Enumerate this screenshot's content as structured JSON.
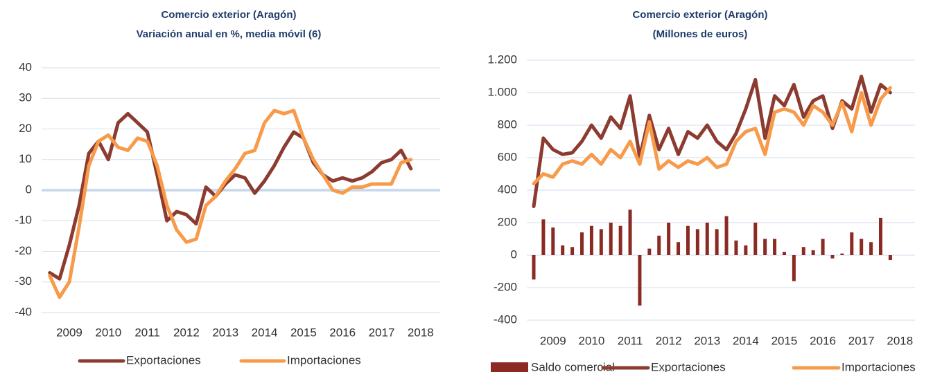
{
  "chart_data": [
    {
      "type": "line",
      "title": [
        "Comercio exterior (Aragón)",
        "Variación anual en %, media móvil (6)"
      ],
      "x": [
        2008.5,
        2008.75,
        2009,
        2009.25,
        2009.5,
        2009.75,
        2010,
        2010.25,
        2010.5,
        2010.75,
        2011,
        2011.25,
        2011.5,
        2011.75,
        2012,
        2012.25,
        2012.5,
        2012.75,
        2013,
        2013.25,
        2013.5,
        2013.75,
        2014,
        2014.25,
        2014.5,
        2014.75,
        2015,
        2015.25,
        2015.5,
        2015.75,
        2016,
        2016.25,
        2016.5,
        2016.75,
        2017,
        2017.25,
        2017.5,
        2017.75
      ],
      "series": [
        {
          "name": "Exportaciones",
          "color": "#8c3b30",
          "values": [
            -27,
            -29,
            -18,
            -5,
            12,
            16,
            10,
            22,
            25,
            22,
            19,
            5,
            -10,
            -7,
            -8,
            -11,
            1,
            -2,
            2,
            5,
            4,
            -1,
            3,
            8,
            14,
            19,
            17,
            9,
            5,
            3,
            4,
            3,
            4,
            6,
            9,
            10,
            13,
            7
          ]
        },
        {
          "name": "Importaciones",
          "color": "#f79a4a",
          "values": [
            -28,
            -35,
            -30,
            -12,
            8,
            16,
            18,
            14,
            13,
            17,
            16,
            8,
            -5,
            -13,
            -17,
            -16,
            -5,
            -2,
            3,
            7,
            12,
            13,
            22,
            26,
            25,
            26,
            17,
            10,
            5,
            0,
            -1,
            1,
            1,
            2,
            2,
            2,
            9,
            10
          ]
        }
      ],
      "xlim": [
        2008.29,
        2018.5
      ],
      "xticks": [
        2009,
        2010,
        2011,
        2012,
        2013,
        2014,
        2015,
        2016,
        2017,
        2018
      ],
      "ylim": [
        -40,
        40
      ],
      "yticks": [
        -40,
        -30,
        -20,
        -10,
        0,
        10,
        20,
        30,
        40
      ],
      "grid": true
    },
    {
      "type": "line",
      "title": [
        "Comercio exterior (Aragón)",
        "(Millones de euros)"
      ],
      "x": [
        2008.5,
        2008.75,
        2009,
        2009.25,
        2009.5,
        2009.75,
        2010,
        2010.25,
        2010.5,
        2010.75,
        2011,
        2011.25,
        2011.5,
        2011.75,
        2012,
        2012.25,
        2012.5,
        2012.75,
        2013,
        2013.25,
        2013.5,
        2013.75,
        2014,
        2014.25,
        2014.5,
        2014.75,
        2015,
        2015.25,
        2015.5,
        2015.75,
        2016,
        2016.25,
        2016.5,
        2016.75,
        2017,
        2017.25,
        2017.5,
        2017.75
      ],
      "series": [
        {
          "name": "Saldo comercial",
          "type": "bar",
          "color": "#8b2a22",
          "values": [
            -150,
            220,
            170,
            60,
            50,
            140,
            180,
            160,
            200,
            180,
            280,
            -310,
            40,
            120,
            200,
            80,
            180,
            160,
            200,
            160,
            240,
            90,
            60,
            200,
            100,
            100,
            20,
            -160,
            50,
            30,
            100,
            -20,
            10,
            140,
            100,
            80,
            230,
            -30
          ]
        },
        {
          "name": "Exportaciones",
          "color": "#8c3b30",
          "values": [
            300,
            720,
            650,
            620,
            630,
            700,
            800,
            720,
            850,
            780,
            980,
            600,
            860,
            650,
            780,
            620,
            760,
            720,
            800,
            700,
            650,
            750,
            900,
            1080,
            720,
            980,
            920,
            1050,
            850,
            950,
            980,
            780,
            950,
            900,
            1100,
            880,
            1050,
            1000
          ]
        },
        {
          "name": "Importaciones",
          "color": "#f79a4a",
          "values": [
            440,
            500,
            480,
            560,
            580,
            560,
            620,
            560,
            650,
            600,
            700,
            560,
            820,
            530,
            580,
            540,
            580,
            560,
            600,
            540,
            560,
            700,
            760,
            780,
            620,
            880,
            900,
            880,
            800,
            920,
            880,
            800,
            940,
            760,
            1000,
            800,
            960,
            1030
          ]
        }
      ],
      "xlim": [
        2008.32,
        2018.39
      ],
      "xticks": [
        2009,
        2010,
        2011,
        2012,
        2013,
        2014,
        2015,
        2016,
        2017,
        2018
      ],
      "ylim": [
        -400,
        1200
      ],
      "yticks": [
        -400,
        -200,
        0,
        200,
        400,
        600,
        800,
        {
          "value": 1000,
          "label": "1.000"
        },
        {
          "value": 1200,
          "label": "1.200"
        }
      ],
      "grid": true
    }
  ]
}
